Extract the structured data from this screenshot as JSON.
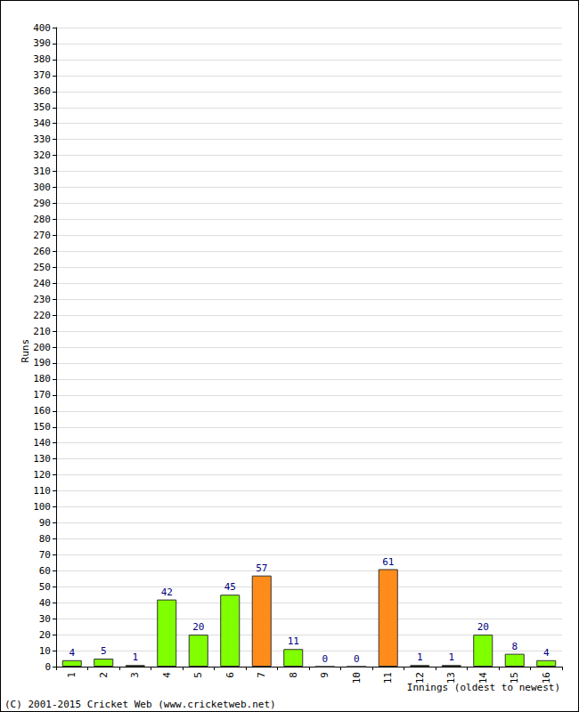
{
  "chart_data": {
    "type": "bar",
    "y_label": "Runs",
    "x_label": "Innings (oldest to newest)",
    "annotations": [
      "(C) 2001-2015 Cricket Web (www.cricketweb.net)"
    ],
    "categories": [
      "1",
      "2",
      "3",
      "4",
      "5",
      "6",
      "7",
      "8",
      "9",
      "10",
      "11",
      "12",
      "13",
      "14",
      "15",
      "16"
    ],
    "values": [
      4,
      5,
      1,
      42,
      20,
      45,
      57,
      11,
      0,
      0,
      61,
      1,
      1,
      20,
      8,
      4
    ],
    "colors": [
      "#80ff00",
      "#80ff00",
      "#80ff00",
      "#80ff00",
      "#80ff00",
      "#80ff00",
      "#ff8c1a",
      "#80ff00",
      "#80ff00",
      "#80ff00",
      "#ff8c1a",
      "#80ff00",
      "#80ff00",
      "#80ff00",
      "#80ff00",
      "#80ff00"
    ],
    "ylim": [
      0,
      400
    ],
    "yticks": [
      0,
      10,
      20,
      30,
      40,
      50,
      60,
      70,
      80,
      90,
      100,
      110,
      120,
      130,
      140,
      150,
      160,
      170,
      180,
      190,
      200,
      210,
      220,
      230,
      240,
      250,
      260,
      270,
      280,
      290,
      300,
      310,
      320,
      330,
      340,
      350,
      360,
      370,
      380,
      390,
      400
    ],
    "grid": true,
    "data_labels": true
  }
}
